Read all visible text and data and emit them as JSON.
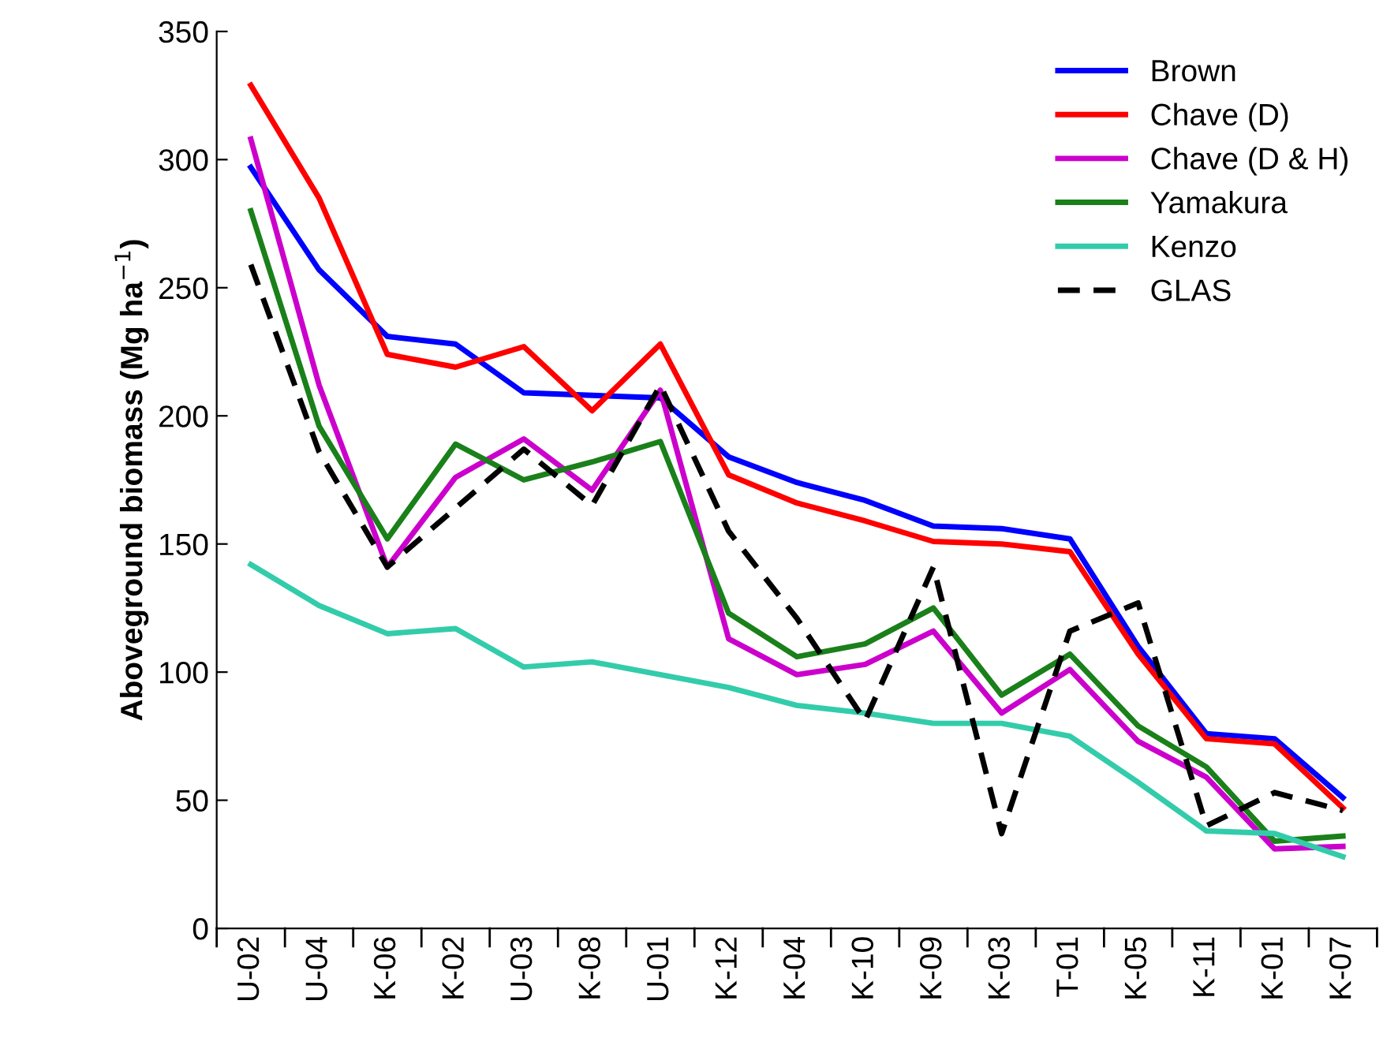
{
  "chart_data": {
    "type": "line",
    "ylabel": "Aboveground biomass (Mg ha$^{−1}$)",
    "categories": [
      "U-02",
      "U-04",
      "K-06",
      "K-02",
      "U-03",
      "K-08",
      "U-01",
      "K-12",
      "K-04",
      "K-10",
      "K-09",
      "K-03",
      "T-01",
      "K-05",
      "K-11",
      "K-01",
      "K-07"
    ],
    "ylim": [
      0,
      350
    ],
    "yticks": [
      0,
      50,
      100,
      150,
      200,
      250,
      300,
      350
    ],
    "grid": false,
    "legend": "top right",
    "marker": "none",
    "series": [
      {
        "name": "Brown",
        "color": "#0000ff",
        "line_style": "solid",
        "values": [
          297,
          257,
          231,
          228,
          209,
          208,
          207,
          184,
          174,
          167,
          157,
          156,
          152,
          110,
          76,
          74,
          51
        ]
      },
      {
        "name": "Chave (D)",
        "color": "#ff0000",
        "line_style": "solid",
        "values": [
          329,
          285,
          224,
          219,
          227,
          202,
          228,
          177,
          166,
          159,
          151,
          150,
          147,
          107,
          74,
          72,
          47
        ]
      },
      {
        "name": "Chave (D & H)",
        "color": "#cc00cc",
        "line_style": "solid",
        "values": [
          308,
          212,
          141,
          176,
          191,
          171,
          210,
          113,
          99,
          103,
          116,
          84,
          101,
          73,
          59,
          31,
          32
        ]
      },
      {
        "name": "Yamakura",
        "color": "#1a801a",
        "line_style": "solid",
        "values": [
          280,
          196,
          152,
          189,
          175,
          182,
          190,
          123,
          106,
          111,
          125,
          91,
          107,
          79,
          63,
          34,
          36
        ]
      },
      {
        "name": "Kenzo",
        "color": "#33ccaa",
        "line_style": "solid",
        "values": [
          142,
          126,
          115,
          117,
          102,
          104,
          99,
          94,
          87,
          84,
          80,
          80,
          75,
          57,
          38,
          37,
          28
        ]
      },
      {
        "name": "GLAS",
        "color": "#000000",
        "line_style": "dashed",
        "values": [
          259,
          186,
          141,
          164,
          187,
          165,
          212,
          155,
          121,
          81,
          141,
          37,
          116,
          127,
          40,
          53,
          46
        ]
      }
    ]
  }
}
